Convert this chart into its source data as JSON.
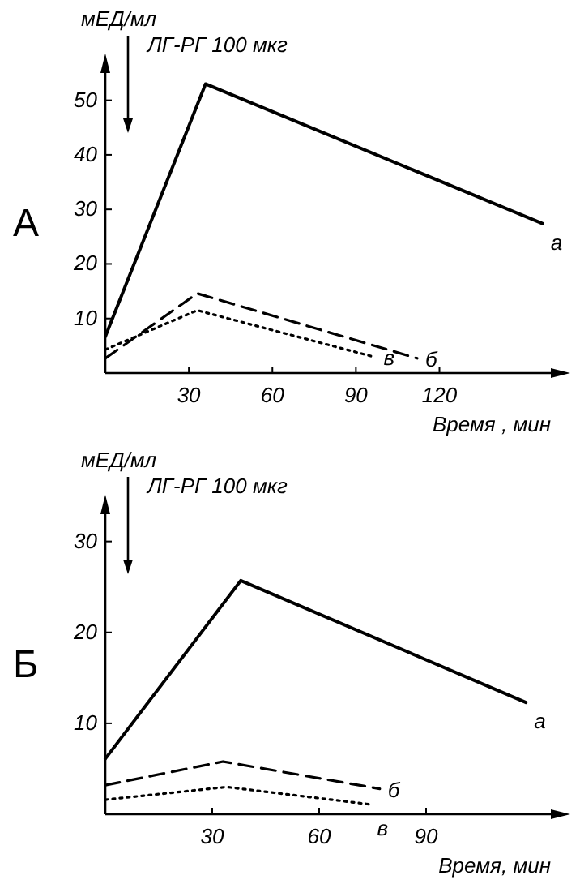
{
  "chart_data": [
    {
      "type": "line",
      "title": "А",
      "xlabel": "Время , мин",
      "ylabel": "мЕД/мл",
      "xlim": [
        0,
        160
      ],
      "ylim": [
        0,
        55
      ],
      "xticks": [
        30,
        60,
        90,
        120
      ],
      "yticks": [
        10,
        20,
        30,
        40,
        50
      ],
      "grid": false,
      "marker": "none",
      "annotations": [
        "ЛГ-РГ 100 мкг"
      ],
      "series": [
        {
          "name": "а",
          "color": "#000000",
          "line_style": "solid",
          "x": [
            0,
            36,
            157
          ],
          "values": [
            6.7,
            53,
            27.4
          ]
        },
        {
          "name": "б",
          "color": "#000000",
          "line_style": "dashed",
          "x": [
            0,
            33,
            112
          ],
          "values": [
            2.7,
            14.6,
            2.7
          ]
        },
        {
          "name": "в",
          "color": "#000000",
          "line_style": "dotted",
          "x": [
            0,
            33,
            97
          ],
          "values": [
            4.3,
            11.5,
            2.9
          ]
        }
      ]
    },
    {
      "type": "line",
      "title": "Б",
      "xlabel": "Время, мин",
      "ylabel": "мЕД/мл",
      "xlim": [
        0,
        125
      ],
      "ylim": [
        0,
        33
      ],
      "xticks": [
        30,
        60,
        90
      ],
      "yticks": [
        10,
        20,
        30
      ],
      "grid": false,
      "marker": "none",
      "annotations": [
        "ЛГ-РГ 100 мкг"
      ],
      "series": [
        {
          "name": "а",
          "color": "#000000",
          "line_style": "solid",
          "x": [
            0,
            38,
            118
          ],
          "values": [
            6.1,
            25.7,
            12.3
          ]
        },
        {
          "name": "б",
          "color": "#000000",
          "line_style": "dashed",
          "x": [
            0,
            33,
            77
          ],
          "values": [
            3.2,
            5.8,
            2.8
          ]
        },
        {
          "name": "в",
          "color": "#000000",
          "line_style": "dotted",
          "x": [
            0,
            34,
            74
          ],
          "values": [
            1.6,
            3.0,
            1.1
          ]
        }
      ]
    }
  ]
}
